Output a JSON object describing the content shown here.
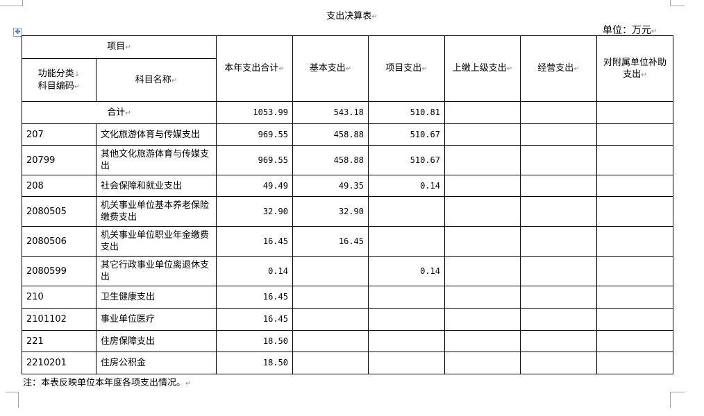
{
  "title": "支出决算表",
  "unit": "单位：万元",
  "headers": {
    "item": "项目",
    "code": "功能分类↓科目编码",
    "code_line1": "功能分类",
    "code_line2": "科目编码",
    "name": "科目名称",
    "total": "本年支出合计",
    "basic": "基本支出",
    "project": "项目支出",
    "upper": "上缴上级支出",
    "business": "经营支出",
    "subsidy": "对附属单位补助支出"
  },
  "total_row": {
    "label": "合计",
    "total": "1053.99",
    "basic": "543.18",
    "project": "510.81",
    "upper": "",
    "business": "",
    "subsidy": ""
  },
  "rows": [
    {
      "code": "207",
      "name": "文化旅游体育与传媒支出",
      "total": "969.55",
      "basic": "458.88",
      "project": "510.67"
    },
    {
      "code": "20799",
      "name": "其他文化旅游体育与传媒支出",
      "total": "969.55",
      "basic": "458.88",
      "project": "510.67"
    },
    {
      "code": "208",
      "name": "社会保障和就业支出",
      "total": "49.49",
      "basic": "49.35",
      "project": "0.14"
    },
    {
      "code": "2080505",
      "name": "机关事业单位基本养老保险缴费支出",
      "total": "32.90",
      "basic": "32.90",
      "project": ""
    },
    {
      "code": "2080506",
      "name": "机关事业单位职业年金缴费支出",
      "total": "16.45",
      "basic": "16.45",
      "project": ""
    },
    {
      "code": "2080599",
      "name": "其它行政事业单位离退休支出",
      "total": "0.14",
      "basic": "",
      "project": "0.14"
    },
    {
      "code": "210",
      "name": "卫生健康支出",
      "total": "16.45",
      "basic": "",
      "project": ""
    },
    {
      "code": "2101102",
      "name": "事业单位医疗",
      "total": "16.45",
      "basic": "",
      "project": ""
    },
    {
      "code": "221",
      "name": "住房保障支出",
      "total": "18.50",
      "basic": "",
      "project": ""
    },
    {
      "code": "2210201",
      "name": "住房公积金",
      "total": "18.50",
      "basic": "",
      "project": ""
    }
  ],
  "note": "注：本表反映单位本年度各项支出情况。"
}
